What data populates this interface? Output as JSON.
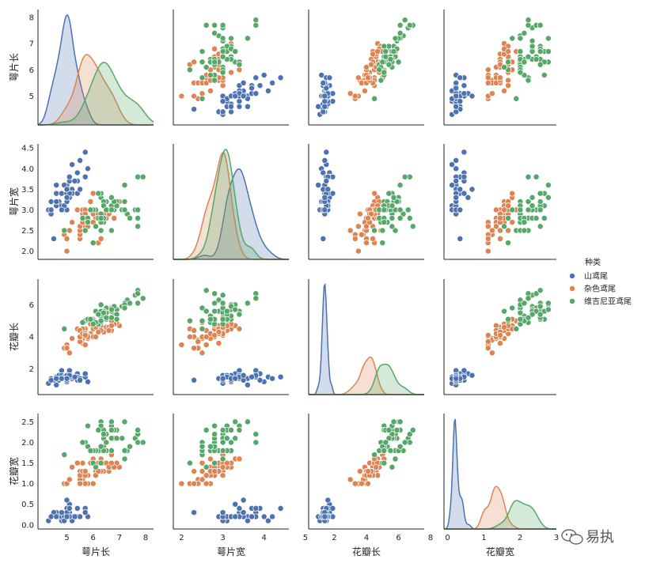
{
  "watermark": {
    "text": "易执"
  },
  "chart_data": {
    "type": "scatter",
    "title": "",
    "variables": [
      "萼片长",
      "萼片宽",
      "花瓣长",
      "花瓣宽"
    ],
    "ranges": [
      [
        3.9,
        8.3
      ],
      [
        1.8,
        4.6
      ],
      [
        0.4,
        7.6
      ],
      [
        -0.1,
        2.7
      ]
    ],
    "ticks": [
      [
        4,
        6,
        8
      ],
      [
        2.0,
        2.5,
        3.0,
        3.5,
        4.0,
        4.5
      ],
      [
        2,
        4,
        6
      ],
      [
        0.0,
        0.5,
        1.0,
        1.5,
        2.0,
        2.5
      ]
    ],
    "tick_labels": [
      [
        "4",
        "6",
        "8"
      ],
      [
        "2.0",
        "2.5",
        "3.0",
        "3.5",
        "4.0",
        "4.5"
      ],
      [
        "2",
        "4",
        "6"
      ],
      [
        "0.0",
        "0.5",
        "1.0",
        "1.5",
        "2.0",
        "2.5"
      ]
    ],
    "diag_x_ticks": [
      [
        5,
        6,
        7,
        8
      ],
      [
        2,
        3,
        4,
        5
      ],
      [
        2,
        4,
        6,
        8
      ],
      [
        0,
        1,
        2,
        3
      ]
    ],
    "diag_x_tick_labels": [
      [
        "5",
        "6",
        "7",
        "8"
      ],
      [
        "2",
        "3",
        "4",
        "5"
      ],
      [
        "2",
        "4",
        "6",
        "8"
      ],
      [
        "0",
        "1",
        "2",
        "3"
      ]
    ],
    "diag_x_ranges": [
      [
        3.9,
        8.3
      ],
      [
        1.3,
        5.0
      ],
      [
        0.4,
        8.0
      ],
      [
        -0.1,
        3.0
      ]
    ],
    "top_left_y_ticks": [
      5,
      6,
      7,
      8
    ],
    "top_left_y_tick_labels": [
      "5",
      "6",
      "7",
      "8"
    ],
    "legend": {
      "title": "种类",
      "position": "right",
      "entries": [
        "山鸢尾",
        "杂色鸢尾",
        "维吉尼亚鸢尾"
      ]
    },
    "colors": [
      "#4c72b0",
      "#dd8452",
      "#55a868"
    ],
    "series": [
      {
        "name": "山鸢尾",
        "points": [
          [
            5.1,
            3.5,
            1.4,
            0.2
          ],
          [
            4.9,
            3.0,
            1.4,
            0.2
          ],
          [
            4.7,
            3.2,
            1.3,
            0.2
          ],
          [
            4.6,
            3.1,
            1.5,
            0.2
          ],
          [
            5.0,
            3.6,
            1.4,
            0.2
          ],
          [
            5.4,
            3.9,
            1.7,
            0.4
          ],
          [
            4.6,
            3.4,
            1.4,
            0.3
          ],
          [
            5.0,
            3.4,
            1.5,
            0.2
          ],
          [
            4.4,
            2.9,
            1.4,
            0.2
          ],
          [
            4.9,
            3.1,
            1.5,
            0.1
          ],
          [
            5.4,
            3.7,
            1.5,
            0.2
          ],
          [
            4.8,
            3.4,
            1.6,
            0.2
          ],
          [
            4.8,
            3.0,
            1.4,
            0.1
          ],
          [
            4.3,
            3.0,
            1.1,
            0.1
          ],
          [
            5.8,
            4.0,
            1.2,
            0.2
          ],
          [
            5.7,
            4.4,
            1.5,
            0.4
          ],
          [
            5.4,
            3.9,
            1.3,
            0.4
          ],
          [
            5.1,
            3.5,
            1.4,
            0.3
          ],
          [
            5.7,
            3.8,
            1.7,
            0.3
          ],
          [
            5.1,
            3.8,
            1.5,
            0.3
          ],
          [
            5.4,
            3.4,
            1.7,
            0.2
          ],
          [
            5.1,
            3.7,
            1.5,
            0.4
          ],
          [
            4.6,
            3.6,
            1.0,
            0.2
          ],
          [
            5.1,
            3.3,
            1.7,
            0.5
          ],
          [
            4.8,
            3.4,
            1.9,
            0.2
          ],
          [
            5.0,
            3.0,
            1.6,
            0.2
          ],
          [
            5.0,
            3.4,
            1.6,
            0.4
          ],
          [
            5.2,
            3.5,
            1.5,
            0.2
          ],
          [
            5.2,
            3.4,
            1.4,
            0.2
          ],
          [
            4.7,
            3.2,
            1.6,
            0.2
          ],
          [
            4.8,
            3.1,
            1.6,
            0.2
          ],
          [
            5.4,
            3.4,
            1.5,
            0.4
          ],
          [
            5.2,
            4.1,
            1.5,
            0.1
          ],
          [
            5.5,
            4.2,
            1.4,
            0.2
          ],
          [
            4.9,
            3.1,
            1.5,
            0.2
          ],
          [
            5.0,
            3.2,
            1.2,
            0.2
          ],
          [
            5.5,
            3.5,
            1.3,
            0.2
          ],
          [
            4.9,
            3.6,
            1.4,
            0.1
          ],
          [
            4.4,
            3.0,
            1.3,
            0.2
          ],
          [
            5.1,
            3.4,
            1.5,
            0.2
          ],
          [
            5.0,
            3.5,
            1.3,
            0.3
          ],
          [
            4.5,
            2.3,
            1.3,
            0.3
          ],
          [
            4.4,
            3.2,
            1.3,
            0.2
          ],
          [
            5.0,
            3.5,
            1.6,
            0.6
          ],
          [
            5.1,
            3.8,
            1.9,
            0.4
          ],
          [
            4.8,
            3.0,
            1.4,
            0.3
          ],
          [
            5.1,
            3.8,
            1.6,
            0.2
          ],
          [
            4.6,
            3.2,
            1.4,
            0.2
          ],
          [
            5.3,
            3.7,
            1.5,
            0.2
          ],
          [
            5.0,
            3.3,
            1.4,
            0.2
          ]
        ]
      },
      {
        "name": "杂色鸢尾",
        "points": [
          [
            7.0,
            3.2,
            4.7,
            1.4
          ],
          [
            6.4,
            3.2,
            4.5,
            1.5
          ],
          [
            6.9,
            3.1,
            4.9,
            1.5
          ],
          [
            5.5,
            2.3,
            4.0,
            1.3
          ],
          [
            6.5,
            2.8,
            4.6,
            1.5
          ],
          [
            5.7,
            2.8,
            4.5,
            1.3
          ],
          [
            6.3,
            3.3,
            4.7,
            1.6
          ],
          [
            4.9,
            2.4,
            3.3,
            1.0
          ],
          [
            6.6,
            2.9,
            4.6,
            1.3
          ],
          [
            5.2,
            2.7,
            3.9,
            1.4
          ],
          [
            5.0,
            2.0,
            3.5,
            1.0
          ],
          [
            5.9,
            3.0,
            4.2,
            1.5
          ],
          [
            6.0,
            2.2,
            4.0,
            1.0
          ],
          [
            6.1,
            2.9,
            4.7,
            1.4
          ],
          [
            5.6,
            2.9,
            3.6,
            1.3
          ],
          [
            6.7,
            3.1,
            4.4,
            1.4
          ],
          [
            5.6,
            3.0,
            4.5,
            1.5
          ],
          [
            5.8,
            2.7,
            4.1,
            1.0
          ],
          [
            6.2,
            2.2,
            4.5,
            1.5
          ],
          [
            5.6,
            2.5,
            3.9,
            1.1
          ],
          [
            5.9,
            3.2,
            4.8,
            1.8
          ],
          [
            6.1,
            2.8,
            4.0,
            1.3
          ],
          [
            6.3,
            2.5,
            4.9,
            1.5
          ],
          [
            6.1,
            2.8,
            4.7,
            1.2
          ],
          [
            6.4,
            2.9,
            4.3,
            1.3
          ],
          [
            6.6,
            3.0,
            4.4,
            1.4
          ],
          [
            6.8,
            2.8,
            4.8,
            1.4
          ],
          [
            6.7,
            3.0,
            5.0,
            1.7
          ],
          [
            6.0,
            2.9,
            4.5,
            1.5
          ],
          [
            5.7,
            2.6,
            3.5,
            1.0
          ],
          [
            5.5,
            2.4,
            3.8,
            1.1
          ],
          [
            5.5,
            2.4,
            3.7,
            1.0
          ],
          [
            5.8,
            2.7,
            3.9,
            1.2
          ],
          [
            6.0,
            2.7,
            5.1,
            1.6
          ],
          [
            5.4,
            3.0,
            4.5,
            1.5
          ],
          [
            6.0,
            3.4,
            4.5,
            1.6
          ],
          [
            6.7,
            3.1,
            4.7,
            1.5
          ],
          [
            6.3,
            2.3,
            4.4,
            1.3
          ],
          [
            5.6,
            3.0,
            4.1,
            1.3
          ],
          [
            5.5,
            2.5,
            4.0,
            1.3
          ],
          [
            5.5,
            2.6,
            4.4,
            1.2
          ],
          [
            6.1,
            3.0,
            4.6,
            1.4
          ],
          [
            5.8,
            2.6,
            4.0,
            1.2
          ],
          [
            5.0,
            2.3,
            3.3,
            1.0
          ],
          [
            5.6,
            2.7,
            4.2,
            1.3
          ],
          [
            5.7,
            3.0,
            4.2,
            1.2
          ],
          [
            5.7,
            2.9,
            4.2,
            1.3
          ],
          [
            6.2,
            2.9,
            4.3,
            1.3
          ],
          [
            5.1,
            2.5,
            3.0,
            1.1
          ],
          [
            5.7,
            2.8,
            4.1,
            1.3
          ]
        ]
      },
      {
        "name": "维吉尼亚鸢尾",
        "points": [
          [
            6.3,
            3.3,
            6.0,
            2.5
          ],
          [
            5.8,
            2.7,
            5.1,
            1.9
          ],
          [
            7.1,
            3.0,
            5.9,
            2.1
          ],
          [
            6.3,
            2.9,
            5.6,
            1.8
          ],
          [
            6.5,
            3.0,
            5.8,
            2.2
          ],
          [
            7.6,
            3.0,
            6.6,
            2.1
          ],
          [
            4.9,
            2.5,
            4.5,
            1.7
          ],
          [
            7.3,
            2.9,
            6.3,
            1.8
          ],
          [
            6.7,
            2.5,
            5.8,
            1.8
          ],
          [
            7.2,
            3.6,
            6.1,
            2.5
          ],
          [
            6.5,
            3.2,
            5.1,
            2.0
          ],
          [
            6.4,
            2.7,
            5.3,
            1.9
          ],
          [
            6.8,
            3.0,
            5.5,
            2.1
          ],
          [
            5.7,
            2.5,
            5.0,
            2.0
          ],
          [
            5.8,
            2.8,
            5.1,
            2.4
          ],
          [
            6.4,
            3.2,
            5.3,
            2.3
          ],
          [
            6.5,
            3.0,
            5.5,
            1.8
          ],
          [
            7.7,
            3.8,
            6.7,
            2.2
          ],
          [
            7.7,
            2.6,
            6.9,
            2.3
          ],
          [
            6.0,
            2.2,
            5.0,
            1.5
          ],
          [
            6.9,
            3.2,
            5.7,
            2.3
          ],
          [
            5.6,
            2.8,
            4.9,
            2.0
          ],
          [
            7.7,
            2.8,
            6.7,
            2.0
          ],
          [
            6.3,
            2.7,
            4.9,
            1.8
          ],
          [
            6.7,
            3.3,
            5.7,
            2.1
          ],
          [
            7.2,
            3.2,
            6.0,
            1.8
          ],
          [
            6.2,
            2.8,
            4.8,
            1.8
          ],
          [
            6.1,
            3.0,
            4.9,
            1.8
          ],
          [
            6.4,
            2.8,
            5.6,
            2.1
          ],
          [
            7.2,
            3.0,
            5.8,
            1.6
          ],
          [
            7.4,
            2.8,
            6.1,
            1.9
          ],
          [
            7.9,
            3.8,
            6.4,
            2.0
          ],
          [
            6.4,
            2.8,
            5.6,
            2.2
          ],
          [
            6.3,
            2.8,
            5.1,
            1.5
          ],
          [
            6.1,
            2.6,
            5.6,
            1.4
          ],
          [
            7.7,
            3.0,
            6.1,
            2.3
          ],
          [
            6.3,
            3.4,
            5.6,
            2.4
          ],
          [
            6.4,
            3.1,
            5.5,
            1.8
          ],
          [
            6.0,
            3.0,
            4.8,
            1.8
          ],
          [
            6.9,
            3.1,
            5.4,
            2.1
          ],
          [
            6.7,
            3.1,
            5.6,
            2.4
          ],
          [
            6.9,
            3.1,
            5.1,
            2.3
          ],
          [
            5.8,
            2.7,
            5.1,
            1.9
          ],
          [
            6.8,
            3.2,
            5.9,
            2.3
          ],
          [
            6.7,
            3.3,
            5.7,
            2.5
          ],
          [
            6.7,
            3.0,
            5.2,
            2.3
          ],
          [
            6.3,
            2.5,
            5.0,
            1.9
          ],
          [
            6.5,
            3.0,
            5.2,
            2.0
          ],
          [
            6.2,
            3.4,
            5.4,
            2.3
          ],
          [
            5.9,
            3.0,
            5.1,
            1.8
          ]
        ]
      }
    ]
  }
}
